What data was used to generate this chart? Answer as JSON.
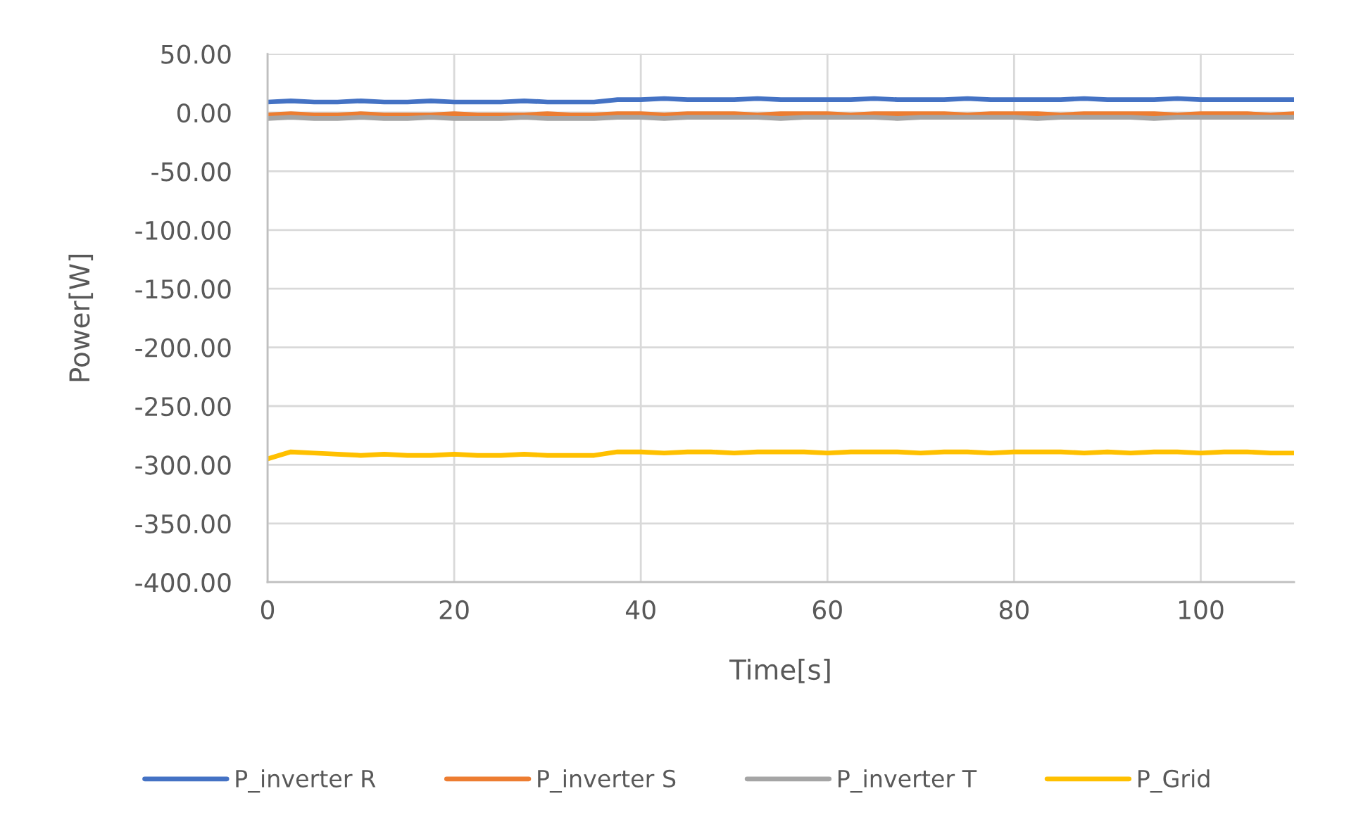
{
  "chart_data": {
    "type": "line",
    "xlabel": "Time[s]",
    "ylabel": "Power[W]",
    "x": [
      0,
      2.5,
      5,
      7.5,
      10,
      12.5,
      15,
      17.5,
      20,
      22.5,
      25,
      27.5,
      30,
      32.5,
      35,
      37.5,
      40,
      42.5,
      45,
      47.5,
      50,
      52.5,
      55,
      57.5,
      60,
      62.5,
      65,
      67.5,
      70,
      72.5,
      75,
      77.5,
      80,
      82.5,
      85,
      87.5,
      90,
      92.5,
      95,
      97.5,
      100,
      102.5,
      105,
      107.5,
      110
    ],
    "series": [
      {
        "name": "P_inverter R",
        "color": "#4472c4",
        "values": [
          9,
          10,
          9,
          9,
          10,
          9,
          9,
          10,
          9,
          9,
          9,
          10,
          9,
          9,
          9,
          11,
          11,
          12,
          11,
          11,
          11,
          12,
          11,
          11,
          11,
          11,
          12,
          11,
          11,
          11,
          12,
          11,
          11,
          11,
          11,
          12,
          11,
          11,
          11,
          12,
          11,
          11,
          11,
          11,
          11
        ]
      },
      {
        "name": "P_inverter S",
        "color": "#ed7d31",
        "values": [
          -2,
          -1,
          -2,
          -2,
          -1,
          -2,
          -2,
          -2,
          -1,
          -2,
          -2,
          -2,
          -1,
          -2,
          -2,
          -1,
          -1,
          -2,
          -1,
          -1,
          -1,
          -2,
          -1,
          -1,
          -1,
          -2,
          -1,
          -1,
          -1,
          -1,
          -2,
          -1,
          -1,
          -1,
          -2,
          -1,
          -1,
          -1,
          -1,
          -2,
          -1,
          -1,
          -1,
          -2,
          -1
        ]
      },
      {
        "name": "P_inverter T",
        "color": "#a5a5a5",
        "values": [
          -5,
          -4,
          -5,
          -5,
          -4,
          -5,
          -5,
          -4,
          -5,
          -5,
          -5,
          -4,
          -5,
          -5,
          -5,
          -4,
          -4,
          -5,
          -4,
          -4,
          -4,
          -4,
          -5,
          -4,
          -4,
          -4,
          -4,
          -5,
          -4,
          -4,
          -4,
          -4,
          -4,
          -5,
          -4,
          -4,
          -4,
          -4,
          -5,
          -4,
          -4,
          -4,
          -4,
          -4,
          -4
        ]
      },
      {
        "name": "P_Grid",
        "color": "#ffc000",
        "values": [
          -295,
          -289,
          -290,
          -291,
          -292,
          -291,
          -292,
          -292,
          -291,
          -292,
          -292,
          -291,
          -292,
          -292,
          -292,
          -289,
          -289,
          -290,
          -289,
          -289,
          -290,
          -289,
          -289,
          -289,
          -290,
          -289,
          -289,
          -289,
          -290,
          -289,
          -289,
          -290,
          -289,
          -289,
          -289,
          -290,
          -289,
          -290,
          -289,
          -289,
          -290,
          -289,
          -289,
          -290,
          -290
        ]
      }
    ],
    "xlim": [
      0,
      110
    ],
    "xticks": [
      0,
      20,
      40,
      60,
      80,
      100
    ],
    "ylim": [
      -400,
      50
    ],
    "yticks": [
      {
        "value": 50,
        "label": "50.00"
      },
      {
        "value": 0,
        "label": "0.00"
      },
      {
        "value": -50,
        "label": "-50.00"
      },
      {
        "value": -100,
        "label": "-100.00"
      },
      {
        "value": -150,
        "label": "-150.00"
      },
      {
        "value": -200,
        "label": "-200.00"
      },
      {
        "value": -250,
        "label": "-250.00"
      },
      {
        "value": -300,
        "label": "-300.00"
      },
      {
        "value": -350,
        "label": "-350.00"
      },
      {
        "value": -400,
        "label": "-400.00"
      }
    ],
    "grid": true,
    "legend": "bottom"
  }
}
